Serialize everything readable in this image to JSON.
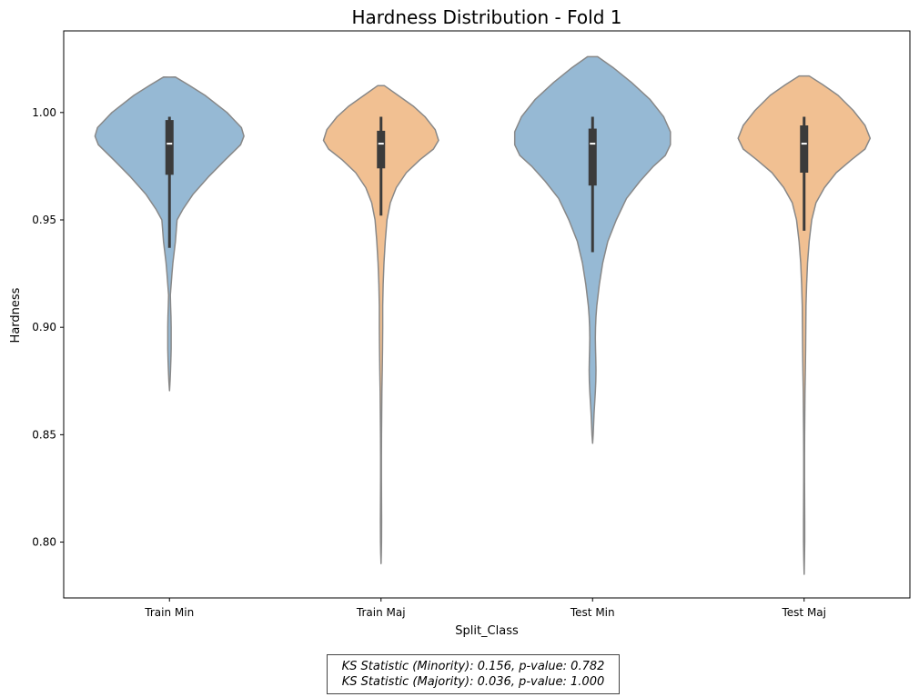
{
  "chart_data": {
    "type": "violin",
    "title": "Hardness Distribution - Fold 1",
    "xlabel": "Split_Class",
    "ylabel": "Hardness",
    "ylim": [
      0.774,
      1.038
    ],
    "yticks": [
      0.8,
      0.85,
      0.9,
      0.95,
      1.0
    ],
    "ytick_labels": [
      "0.80",
      "0.85",
      "0.90",
      "0.95",
      "1.00"
    ],
    "categories": [
      "Train Min",
      "Train Maj",
      "Test Min",
      "Test Maj"
    ],
    "colors": [
      "#96b9d4",
      "#f1c092",
      "#96b9d4",
      "#f1c092"
    ],
    "edge_color": "#888888",
    "box_color": "#3b3b3b",
    "violins": [
      {
        "name": "Train Min",
        "profile": [
          [
            1.0165,
            0.07
          ],
          [
            1.013,
            0.22
          ],
          [
            1.008,
            0.42
          ],
          [
            1.0,
            0.68
          ],
          [
            0.993,
            0.85
          ],
          [
            0.989,
            0.88
          ],
          [
            0.985,
            0.84
          ],
          [
            0.978,
            0.66
          ],
          [
            0.97,
            0.46
          ],
          [
            0.962,
            0.28
          ],
          [
            0.955,
            0.16
          ],
          [
            0.95,
            0.09
          ],
          [
            0.945,
            0.08
          ],
          [
            0.94,
            0.07
          ],
          [
            0.935,
            0.055
          ],
          [
            0.93,
            0.04
          ],
          [
            0.925,
            0.03
          ],
          [
            0.92,
            0.02
          ],
          [
            0.915,
            0.01
          ],
          [
            0.91,
            0.013
          ],
          [
            0.905,
            0.018
          ],
          [
            0.9,
            0.02
          ],
          [
            0.895,
            0.02
          ],
          [
            0.89,
            0.02
          ],
          [
            0.885,
            0.017
          ],
          [
            0.88,
            0.012
          ],
          [
            0.875,
            0.007
          ],
          [
            0.8705,
            0.0
          ]
        ],
        "median": 0.9855,
        "q1": 0.971,
        "q3": 0.9965,
        "whisker_low": 0.937,
        "whisker_high": 0.998
      },
      {
        "name": "Train Maj",
        "profile": [
          [
            1.0125,
            0.04
          ],
          [
            1.008,
            0.2
          ],
          [
            1.003,
            0.38
          ],
          [
            0.998,
            0.52
          ],
          [
            0.992,
            0.64
          ],
          [
            0.987,
            0.68
          ],
          [
            0.983,
            0.62
          ],
          [
            0.978,
            0.46
          ],
          [
            0.972,
            0.3
          ],
          [
            0.965,
            0.18
          ],
          [
            0.958,
            0.11
          ],
          [
            0.95,
            0.07
          ],
          [
            0.94,
            0.05
          ],
          [
            0.93,
            0.035
          ],
          [
            0.92,
            0.025
          ],
          [
            0.91,
            0.02
          ],
          [
            0.9,
            0.02
          ],
          [
            0.89,
            0.018
          ],
          [
            0.88,
            0.015
          ],
          [
            0.87,
            0.01
          ],
          [
            0.86,
            0.008
          ],
          [
            0.85,
            0.006
          ],
          [
            0.84,
            0.005
          ],
          [
            0.83,
            0.005
          ],
          [
            0.82,
            0.006
          ],
          [
            0.81,
            0.007
          ],
          [
            0.8,
            0.006
          ],
          [
            0.795,
            0.004
          ],
          [
            0.79,
            0.0
          ]
        ],
        "median": 0.9855,
        "q1": 0.974,
        "q3": 0.9915,
        "whisker_low": 0.952,
        "whisker_high": 0.998
      },
      {
        "name": "Test Min",
        "profile": [
          [
            1.026,
            0.06
          ],
          [
            1.021,
            0.24
          ],
          [
            1.014,
            0.46
          ],
          [
            1.006,
            0.68
          ],
          [
            0.998,
            0.84
          ],
          [
            0.991,
            0.92
          ],
          [
            0.985,
            0.92
          ],
          [
            0.98,
            0.86
          ],
          [
            0.975,
            0.72
          ],
          [
            0.968,
            0.56
          ],
          [
            0.96,
            0.4
          ],
          [
            0.95,
            0.28
          ],
          [
            0.94,
            0.18
          ],
          [
            0.93,
            0.12
          ],
          [
            0.92,
            0.08
          ],
          [
            0.91,
            0.05
          ],
          [
            0.905,
            0.04
          ],
          [
            0.9,
            0.035
          ],
          [
            0.895,
            0.033
          ],
          [
            0.89,
            0.035
          ],
          [
            0.885,
            0.038
          ],
          [
            0.88,
            0.04
          ],
          [
            0.875,
            0.038
          ],
          [
            0.87,
            0.033
          ],
          [
            0.865,
            0.025
          ],
          [
            0.86,
            0.018
          ],
          [
            0.855,
            0.012
          ],
          [
            0.85,
            0.007
          ],
          [
            0.846,
            0.0
          ]
        ],
        "median": 0.9855,
        "q1": 0.966,
        "q3": 0.9925,
        "whisker_low": 0.935,
        "whisker_high": 0.998
      },
      {
        "name": "Test Maj",
        "profile": [
          [
            1.017,
            0.06
          ],
          [
            1.013,
            0.22
          ],
          [
            1.008,
            0.4
          ],
          [
            1.001,
            0.58
          ],
          [
            0.994,
            0.72
          ],
          [
            0.988,
            0.78
          ],
          [
            0.983,
            0.72
          ],
          [
            0.978,
            0.56
          ],
          [
            0.972,
            0.38
          ],
          [
            0.965,
            0.24
          ],
          [
            0.958,
            0.14
          ],
          [
            0.95,
            0.09
          ],
          [
            0.94,
            0.06
          ],
          [
            0.93,
            0.04
          ],
          [
            0.92,
            0.03
          ],
          [
            0.91,
            0.022
          ],
          [
            0.9,
            0.02
          ],
          [
            0.89,
            0.018
          ],
          [
            0.88,
            0.014
          ],
          [
            0.87,
            0.01
          ],
          [
            0.86,
            0.008
          ],
          [
            0.85,
            0.006
          ],
          [
            0.84,
            0.005
          ],
          [
            0.83,
            0.005
          ],
          [
            0.82,
            0.006
          ],
          [
            0.81,
            0.007
          ],
          [
            0.8,
            0.007
          ],
          [
            0.792,
            0.004
          ],
          [
            0.785,
            0.0
          ]
        ],
        "median": 0.9855,
        "q1": 0.972,
        "q3": 0.994,
        "whisker_low": 0.945,
        "whisker_high": 0.998
      }
    ]
  },
  "annotation": {
    "ks_minority": "KS Statistic (Minority): 0.156, p-value: 0.782",
    "ks_majority": "KS Statistic (Majority): 0.036, p-value: 1.000"
  }
}
